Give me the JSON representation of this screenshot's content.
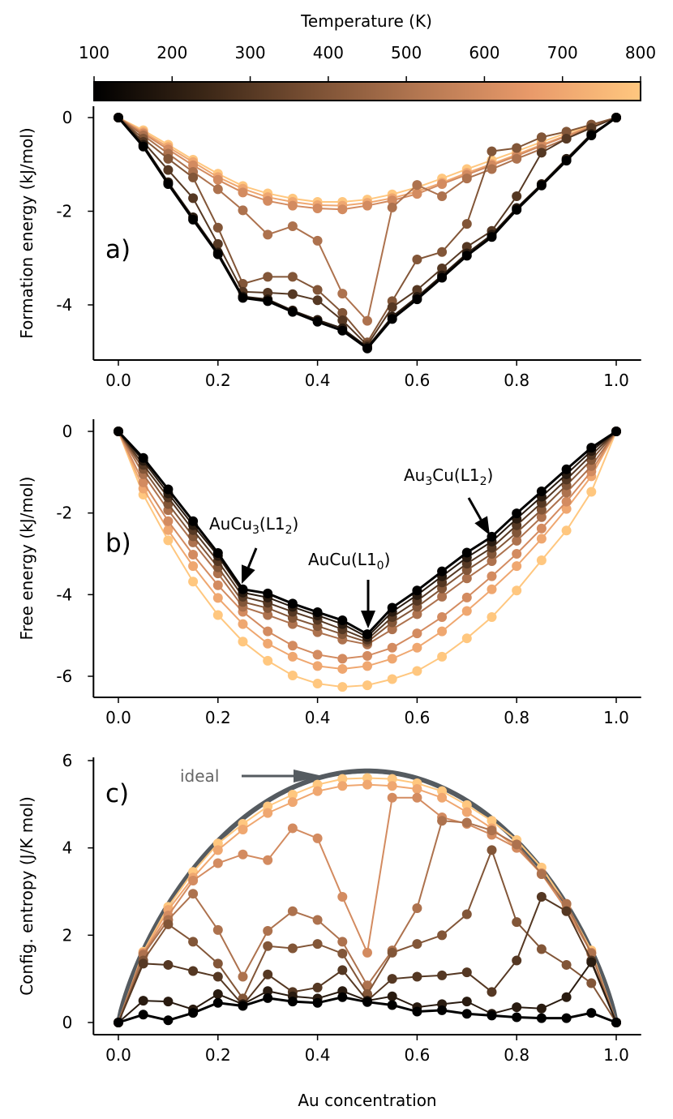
{
  "colorbar": {
    "label": "Temperature (K)",
    "ticks": [
      "100",
      "200",
      "300",
      "400",
      "500",
      "600",
      "700",
      "800"
    ],
    "range": [
      100,
      800
    ],
    "cmap_stops": [
      "#000000",
      "#3a2616",
      "#7a5034",
      "#b57852",
      "#e99a6a",
      "#ffc77f"
    ]
  },
  "x_axis": {
    "label": "Au concentration",
    "tick_labels": [
      "0.0",
      "0.2",
      "0.4",
      "0.6",
      "0.8",
      "1.0"
    ]
  },
  "chart_data": [
    {
      "type": "line",
      "panel": "a)",
      "ylabel": "Formation energy (kJ/mol)",
      "x": [
        0,
        0.05,
        0.1,
        0.15,
        0.2,
        0.25,
        0.3,
        0.35,
        0.4,
        0.45,
        0.5,
        0.55,
        0.6,
        0.65,
        0.7,
        0.75,
        0.8,
        0.85,
        0.9,
        0.95,
        1.0
      ],
      "ylim": [
        -5.2,
        0.3
      ],
      "yticks": [
        "0",
        "-2",
        "-4"
      ],
      "series": [
        {
          "temperature": 100,
          "values": [
            0,
            -0.62,
            -1.42,
            -2.18,
            -2.92,
            -3.85,
            -3.92,
            -4.15,
            -4.36,
            -4.55,
            -4.93,
            -4.3,
            -3.88,
            -3.42,
            -2.95,
            -2.55,
            -1.97,
            -1.45,
            -0.92,
            -0.38,
            0
          ]
        },
        {
          "temperature": 200,
          "values": [
            0,
            -0.58,
            -1.38,
            -2.13,
            -2.88,
            -3.82,
            -3.88,
            -4.12,
            -4.32,
            -4.5,
            -4.9,
            -4.25,
            -3.83,
            -3.37,
            -2.9,
            -2.5,
            -1.93,
            -1.42,
            -0.88,
            -0.35,
            0
          ]
        },
        {
          "temperature": 300,
          "values": [
            0,
            -0.52,
            -1.12,
            -1.72,
            -2.7,
            -3.72,
            -3.74,
            -3.77,
            -3.9,
            -4.33,
            -4.86,
            -4.05,
            -3.68,
            -3.22,
            -2.76,
            -2.42,
            -1.68,
            -0.75,
            -0.45,
            -0.22,
            0
          ]
        },
        {
          "temperature": 400,
          "values": [
            0,
            -0.45,
            -0.88,
            -1.28,
            -2.35,
            -3.55,
            -3.4,
            -3.4,
            -3.68,
            -4.17,
            -4.8,
            -3.92,
            -3.03,
            -2.87,
            -2.27,
            -0.72,
            -0.65,
            -0.42,
            -0.3,
            -0.15,
            0
          ]
        },
        {
          "temperature": 500,
          "values": [
            0,
            -0.38,
            -0.77,
            -1.16,
            -1.53,
            -1.98,
            -2.5,
            -2.32,
            -2.63,
            -3.76,
            -4.34,
            -1.92,
            -1.44,
            -1.68,
            -1.3,
            -1.1,
            -0.88,
            -0.67,
            -0.45,
            -0.2,
            0
          ]
        },
        {
          "temperature": 600,
          "values": [
            0,
            -0.34,
            -0.68,
            -1.02,
            -1.33,
            -1.6,
            -1.78,
            -1.88,
            -1.94,
            -1.96,
            -1.88,
            -1.77,
            -1.63,
            -1.42,
            -1.22,
            -1.02,
            -0.82,
            -0.6,
            -0.4,
            -0.2,
            0
          ]
        },
        {
          "temperature": 700,
          "values": [
            0,
            -0.31,
            -0.63,
            -0.95,
            -1.27,
            -1.52,
            -1.7,
            -1.8,
            -1.87,
            -1.88,
            -1.82,
            -1.72,
            -1.58,
            -1.39,
            -1.18,
            -0.99,
            -0.79,
            -0.58,
            -0.38,
            -0.18,
            0
          ]
        },
        {
          "temperature": 800,
          "values": [
            0,
            -0.27,
            -0.58,
            -0.9,
            -1.2,
            -1.46,
            -1.62,
            -1.73,
            -1.8,
            -1.8,
            -1.75,
            -1.64,
            -1.49,
            -1.3,
            -1.1,
            -0.91,
            -0.72,
            -0.52,
            -0.33,
            -0.16,
            0
          ]
        }
      ]
    },
    {
      "type": "line",
      "panel": "b)",
      "ylabel": "Free energy (kJ/mol)",
      "x": [
        0,
        0.05,
        0.1,
        0.15,
        0.2,
        0.25,
        0.3,
        0.35,
        0.4,
        0.45,
        0.5,
        0.55,
        0.6,
        0.65,
        0.7,
        0.75,
        0.8,
        0.85,
        0.9,
        0.95,
        1.0
      ],
      "ylim": [
        -6.55,
        0.3
      ],
      "yticks": [
        "0",
        "-2",
        "-4",
        "-6"
      ],
      "annotations": [
        {
          "text": "AuCu",
          "sub": "3",
          "tail": "(L1",
          "sub2": "2",
          "end": ")",
          "x": 0.25,
          "y": -3.87
        },
        {
          "text": "AuCu",
          "sub": "",
          "tail": "(L1",
          "sub2": "0",
          "end": ")",
          "x": 0.5,
          "y": -4.97
        },
        {
          "text": "Au",
          "sub": "3",
          "tail": "Cu(L1",
          "sub2": "2",
          "end": ")",
          "x": 0.75,
          "y": -2.58
        }
      ],
      "series": [
        {
          "temperature": 100,
          "values": [
            0,
            -0.65,
            -1.42,
            -2.2,
            -2.98,
            -3.87,
            -3.97,
            -4.22,
            -4.43,
            -4.63,
            -4.97,
            -4.32,
            -3.9,
            -3.43,
            -2.97,
            -2.58,
            -2.01,
            -1.47,
            -0.93,
            -0.4,
            0
          ]
        },
        {
          "temperature": 200,
          "values": [
            0,
            -0.72,
            -1.52,
            -2.3,
            -3.05,
            -3.95,
            -4.07,
            -4.3,
            -4.51,
            -4.72,
            -5.04,
            -4.42,
            -4.01,
            -3.55,
            -3.09,
            -2.7,
            -2.14,
            -1.6,
            -1.05,
            -0.48,
            0
          ]
        },
        {
          "temperature": 300,
          "values": [
            0,
            -0.82,
            -1.62,
            -2.42,
            -3.18,
            -4.05,
            -4.2,
            -4.42,
            -4.62,
            -4.85,
            -5.1,
            -4.55,
            -4.15,
            -3.7,
            -3.24,
            -2.85,
            -2.3,
            -1.75,
            -1.18,
            -0.58,
            0
          ]
        },
        {
          "temperature": 400,
          "values": [
            0,
            -0.92,
            -1.78,
            -2.57,
            -3.33,
            -4.18,
            -4.33,
            -4.57,
            -4.77,
            -4.97,
            -5.16,
            -4.68,
            -4.3,
            -3.85,
            -3.4,
            -3.0,
            -2.48,
            -1.92,
            -1.32,
            -0.7,
            0
          ]
        },
        {
          "temperature": 500,
          "values": [
            0,
            -1.05,
            -1.93,
            -2.72,
            -3.48,
            -4.3,
            -4.5,
            -4.72,
            -4.92,
            -5.1,
            -5.22,
            -4.85,
            -4.48,
            -4.05,
            -3.6,
            -3.18,
            -2.68,
            -2.1,
            -1.5,
            -0.85,
            0
          ]
        },
        {
          "temperature": 600,
          "values": [
            0,
            -1.25,
            -2.2,
            -3.02,
            -3.77,
            -4.42,
            -4.9,
            -5.25,
            -5.47,
            -5.57,
            -5.5,
            -5.3,
            -4.95,
            -4.55,
            -4.07,
            -3.55,
            -3.0,
            -2.38,
            -1.72,
            -0.98,
            0
          ]
        },
        {
          "temperature": 700,
          "values": [
            0,
            -1.4,
            -2.42,
            -3.3,
            -4.08,
            -4.72,
            -5.2,
            -5.52,
            -5.75,
            -5.82,
            -5.75,
            -5.57,
            -5.3,
            -4.9,
            -4.4,
            -3.87,
            -3.3,
            -2.63,
            -1.9,
            -1.1,
            0
          ]
        },
        {
          "temperature": 800,
          "values": [
            0,
            -1.55,
            -2.67,
            -3.68,
            -4.5,
            -5.15,
            -5.62,
            -5.98,
            -6.18,
            -6.26,
            -6.22,
            -6.07,
            -5.87,
            -5.52,
            -5.07,
            -4.55,
            -3.9,
            -3.16,
            -2.43,
            -1.48,
            0
          ]
        }
      ]
    },
    {
      "type": "line",
      "panel": "c)",
      "ylabel": "Config. entropy (J/K mol)",
      "xlabel": "Au concentration",
      "x": [
        0,
        0.05,
        0.1,
        0.15,
        0.2,
        0.25,
        0.3,
        0.35,
        0.4,
        0.45,
        0.5,
        0.55,
        0.6,
        0.65,
        0.7,
        0.75,
        0.8,
        0.85,
        0.9,
        0.95,
        1.0
      ],
      "ylim": [
        -0.28,
        6.1
      ],
      "yticks": [
        "0",
        "2",
        "4",
        "6"
      ],
      "ideal_label": "ideal",
      "series": [
        {
          "temperature": 100,
          "values": [
            0,
            0.18,
            0.05,
            0.22,
            0.45,
            0.38,
            0.56,
            0.48,
            0.45,
            0.58,
            0.47,
            0.4,
            0.25,
            0.28,
            0.2,
            0.16,
            0.12,
            0.1,
            0.1,
            0.22,
            0
          ]
        },
        {
          "temperature": 200,
          "values": [
            0,
            0.5,
            0.48,
            0.3,
            0.65,
            0.42,
            0.72,
            0.6,
            0.55,
            0.72,
            0.5,
            0.6,
            0.35,
            0.42,
            0.48,
            0.2,
            0.35,
            0.32,
            0.58,
            1.38,
            0
          ]
        },
        {
          "temperature": 300,
          "values": [
            0,
            1.35,
            1.32,
            1.18,
            1.05,
            0.4,
            1.1,
            0.7,
            0.8,
            1.2,
            0.5,
            1.0,
            1.05,
            1.08,
            1.15,
            0.7,
            1.42,
            2.88,
            2.55,
            1.42,
            0
          ]
        },
        {
          "temperature": 400,
          "values": [
            0,
            1.42,
            2.25,
            1.85,
            1.35,
            0.55,
            1.75,
            1.7,
            1.8,
            1.58,
            0.65,
            1.6,
            1.8,
            2.0,
            2.48,
            3.95,
            2.3,
            1.68,
            1.32,
            0.9,
            0
          ]
        },
        {
          "temperature": 500,
          "values": [
            0,
            1.55,
            2.35,
            2.95,
            2.12,
            1.05,
            2.1,
            2.55,
            2.35,
            1.85,
            0.85,
            1.65,
            2.62,
            4.62,
            4.58,
            4.4,
            4.08,
            3.4,
            2.72,
            1.58,
            0
          ]
        },
        {
          "temperature": 600,
          "values": [
            0,
            1.58,
            2.45,
            3.25,
            3.65,
            3.85,
            3.72,
            4.45,
            4.22,
            2.88,
            1.6,
            5.15,
            5.15,
            4.7,
            4.55,
            4.3,
            4.0,
            3.42,
            2.58,
            1.6,
            0
          ]
        },
        {
          "temperature": 700,
          "values": [
            0,
            1.6,
            2.58,
            3.32,
            3.95,
            4.42,
            4.8,
            5.05,
            5.3,
            5.42,
            5.45,
            5.42,
            5.35,
            5.15,
            4.82,
            4.45,
            4.0,
            3.4,
            2.6,
            1.6,
            0
          ]
        },
        {
          "temperature": 800,
          "values": [
            0,
            1.62,
            2.65,
            3.45,
            4.1,
            4.55,
            4.95,
            5.22,
            5.45,
            5.58,
            5.6,
            5.58,
            5.48,
            5.3,
            4.98,
            4.62,
            4.18,
            3.55,
            2.7,
            1.65,
            0
          ]
        }
      ]
    }
  ]
}
